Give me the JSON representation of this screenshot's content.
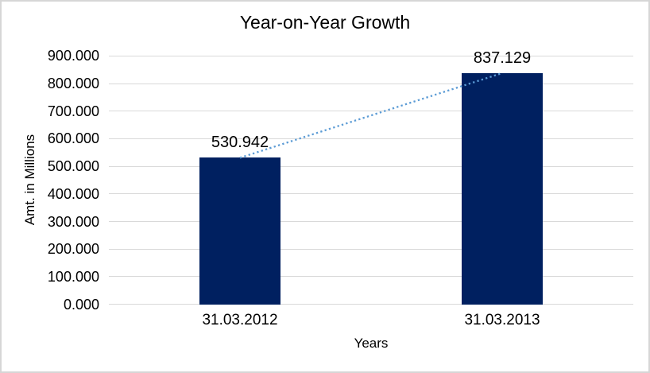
{
  "chart_data": {
    "type": "bar",
    "title": "Year-on-Year Growth",
    "xlabel": "Years",
    "ylabel": "Amt. in Millions",
    "categories": [
      "31.03.2012",
      "31.03.2013"
    ],
    "values": [
      530.942,
      837.129
    ],
    "data_labels": [
      "530.942",
      "837.129"
    ],
    "ylim": [
      0,
      900
    ],
    "y_tick_step": 100,
    "y_tick_labels": [
      "900.000",
      "800.000",
      "700.000",
      "600.000",
      "500.000",
      "400.000",
      "300.000",
      "200.000",
      "100.000",
      "0.000"
    ],
    "grid": "horizontal-major",
    "legend": "none",
    "bar_color": "#002060",
    "gridline_color": "#d9d9d9",
    "trendline": {
      "type": "linear",
      "style": "dotted",
      "color": "#5b9bd5",
      "from": 530.942,
      "to": 837.129
    }
  }
}
